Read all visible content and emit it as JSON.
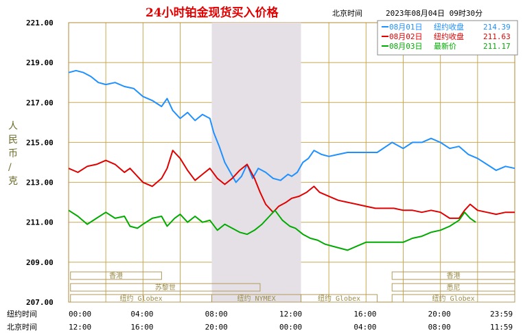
{
  "chart_data": {
    "type": "line",
    "title": "24小时铂金现货买入价格",
    "location": "北京时间",
    "datetime": "2023年08月04日 09时30分",
    "ylabel": "人民币/克",
    "ylim": [
      207,
      221
    ],
    "yticks": [
      "221.00",
      "219.00",
      "217.00",
      "215.00",
      "213.00",
      "211.00",
      "209.00",
      "207.00"
    ],
    "xlim": [
      0,
      24
    ],
    "x_row1_label": "纽约时间",
    "x_row1_ticks": [
      "00:00",
      "04:00",
      "08:00",
      "12:00",
      "16:00",
      "20:00",
      "23:59"
    ],
    "x_row2_label": "北京时间",
    "x_row2_ticks": [
      "12:00",
      "16:00",
      "20:00",
      "00:00",
      "04:00",
      "08:00",
      "11:59"
    ],
    "shaded_range": [
      7.7,
      12.5
    ],
    "markets": [
      {
        "name": "香港",
        "start": 0.1,
        "end": 5.0,
        "row": 0
      },
      {
        "name": "香港",
        "start": 17.4,
        "end": 24,
        "row": 0
      },
      {
        "name": "苏黎世",
        "start": 0.1,
        "end": 10.3,
        "row": 1
      },
      {
        "name": "悉尼",
        "start": 17.4,
        "end": 24,
        "row": 1
      },
      {
        "name": "纽约 Globex",
        "start": 0.1,
        "end": 7.7,
        "row": 2
      },
      {
        "name": "纽约 NYMEX",
        "start": 7.7,
        "end": 12.5,
        "row": 2
      },
      {
        "name": "纽约 Globex",
        "start": 12.5,
        "end": 16.6,
        "row": 2
      },
      {
        "name": "纽约 Globex",
        "start": 17.4,
        "end": 24,
        "row": 2
      }
    ],
    "series": [
      {
        "name": "08月01日",
        "legend_label": "纽约收盘",
        "legend_value": "214.39",
        "color": "#1e90ff",
        "points": [
          [
            0,
            218.5
          ],
          [
            0.4,
            218.6
          ],
          [
            0.8,
            218.5
          ],
          [
            1.2,
            218.3
          ],
          [
            1.6,
            218.0
          ],
          [
            2.0,
            217.9
          ],
          [
            2.5,
            218.0
          ],
          [
            3.0,
            217.8
          ],
          [
            3.5,
            217.7
          ],
          [
            4.0,
            217.3
          ],
          [
            4.5,
            217.1
          ],
          [
            5.0,
            216.8
          ],
          [
            5.3,
            217.2
          ],
          [
            5.6,
            216.6
          ],
          [
            6.0,
            216.2
          ],
          [
            6.4,
            216.5
          ],
          [
            6.8,
            216.1
          ],
          [
            7.2,
            216.4
          ],
          [
            7.6,
            216.2
          ],
          [
            7.8,
            215.5
          ],
          [
            8.1,
            214.8
          ],
          [
            8.4,
            214.0
          ],
          [
            8.7,
            213.5
          ],
          [
            9.0,
            213.0
          ],
          [
            9.3,
            213.3
          ],
          [
            9.6,
            213.9
          ],
          [
            9.9,
            213.2
          ],
          [
            10.2,
            213.7
          ],
          [
            10.6,
            213.5
          ],
          [
            11.0,
            213.2
          ],
          [
            11.4,
            213.1
          ],
          [
            11.8,
            213.4
          ],
          [
            12.0,
            213.3
          ],
          [
            12.3,
            213.5
          ],
          [
            12.6,
            214.0
          ],
          [
            12.9,
            214.2
          ],
          [
            13.2,
            214.6
          ],
          [
            13.6,
            214.4
          ],
          [
            14.0,
            214.3
          ],
          [
            14.5,
            214.4
          ],
          [
            15.0,
            214.5
          ],
          [
            15.5,
            214.5
          ],
          [
            16.0,
            214.5
          ],
          [
            16.6,
            214.5
          ],
          [
            17.4,
            215.0
          ],
          [
            18.0,
            214.7
          ],
          [
            18.5,
            215.0
          ],
          [
            19.0,
            215.0
          ],
          [
            19.5,
            215.2
          ],
          [
            20.0,
            215.0
          ],
          [
            20.5,
            214.7
          ],
          [
            21.0,
            214.8
          ],
          [
            21.5,
            214.4
          ],
          [
            22.0,
            214.2
          ],
          [
            22.5,
            213.9
          ],
          [
            23.0,
            213.6
          ],
          [
            23.5,
            213.8
          ],
          [
            24.0,
            213.7
          ]
        ]
      },
      {
        "name": "08月02日",
        "legend_label": "纽约收盘",
        "legend_value": "211.63",
        "color": "#e00000",
        "points": [
          [
            0,
            213.7
          ],
          [
            0.5,
            213.5
          ],
          [
            1.0,
            213.8
          ],
          [
            1.5,
            213.9
          ],
          [
            2.0,
            214.1
          ],
          [
            2.5,
            213.9
          ],
          [
            3.0,
            213.5
          ],
          [
            3.3,
            213.7
          ],
          [
            3.7,
            213.3
          ],
          [
            4.0,
            213.0
          ],
          [
            4.5,
            212.8
          ],
          [
            5.0,
            213.2
          ],
          [
            5.3,
            213.7
          ],
          [
            5.6,
            214.6
          ],
          [
            6.0,
            214.2
          ],
          [
            6.4,
            213.6
          ],
          [
            6.8,
            213.1
          ],
          [
            7.2,
            213.4
          ],
          [
            7.6,
            213.7
          ],
          [
            8.0,
            213.2
          ],
          [
            8.4,
            212.9
          ],
          [
            8.8,
            213.2
          ],
          [
            9.2,
            213.6
          ],
          [
            9.6,
            213.9
          ],
          [
            10.0,
            213.2
          ],
          [
            10.3,
            212.5
          ],
          [
            10.6,
            211.9
          ],
          [
            11.0,
            211.5
          ],
          [
            11.3,
            211.8
          ],
          [
            11.7,
            212.0
          ],
          [
            12.0,
            212.2
          ],
          [
            12.4,
            212.3
          ],
          [
            12.8,
            212.5
          ],
          [
            13.2,
            212.8
          ],
          [
            13.5,
            212.5
          ],
          [
            14.0,
            212.3
          ],
          [
            14.5,
            212.1
          ],
          [
            15.0,
            212.0
          ],
          [
            15.5,
            211.9
          ],
          [
            16.0,
            211.8
          ],
          [
            16.5,
            211.7
          ],
          [
            17.0,
            211.7
          ],
          [
            17.5,
            211.7
          ],
          [
            18.0,
            211.6
          ],
          [
            18.5,
            211.6
          ],
          [
            19.0,
            211.5
          ],
          [
            19.5,
            211.6
          ],
          [
            20.0,
            211.5
          ],
          [
            20.5,
            211.2
          ],
          [
            21.0,
            211.2
          ],
          [
            21.3,
            211.6
          ],
          [
            21.6,
            211.9
          ],
          [
            22.0,
            211.6
          ],
          [
            22.5,
            211.5
          ],
          [
            23.0,
            211.4
          ],
          [
            23.5,
            211.5
          ],
          [
            24.0,
            211.5
          ]
        ]
      },
      {
        "name": "08月03日",
        "legend_label": "最新价",
        "legend_value": "211.17",
        "color": "#00aa00",
        "points": [
          [
            0,
            211.6
          ],
          [
            0.5,
            211.3
          ],
          [
            1.0,
            210.9
          ],
          [
            1.5,
            211.2
          ],
          [
            2.0,
            211.5
          ],
          [
            2.5,
            211.2
          ],
          [
            3.0,
            211.3
          ],
          [
            3.3,
            210.8
          ],
          [
            3.7,
            210.7
          ],
          [
            4.0,
            210.9
          ],
          [
            4.5,
            211.2
          ],
          [
            5.0,
            211.3
          ],
          [
            5.3,
            210.8
          ],
          [
            5.7,
            211.2
          ],
          [
            6.0,
            211.4
          ],
          [
            6.4,
            211.0
          ],
          [
            6.8,
            211.3
          ],
          [
            7.2,
            211.0
          ],
          [
            7.6,
            211.1
          ],
          [
            8.0,
            210.6
          ],
          [
            8.4,
            210.9
          ],
          [
            8.8,
            210.7
          ],
          [
            9.2,
            210.5
          ],
          [
            9.6,
            210.4
          ],
          [
            10.0,
            210.6
          ],
          [
            10.4,
            210.9
          ],
          [
            10.8,
            211.3
          ],
          [
            11.1,
            211.6
          ],
          [
            11.5,
            211.1
          ],
          [
            11.9,
            210.8
          ],
          [
            12.2,
            210.7
          ],
          [
            12.6,
            210.4
          ],
          [
            13.0,
            210.2
          ],
          [
            13.4,
            210.1
          ],
          [
            13.8,
            209.9
          ],
          [
            14.2,
            209.8
          ],
          [
            14.6,
            209.7
          ],
          [
            15.0,
            209.6
          ],
          [
            15.5,
            209.8
          ],
          [
            16.0,
            210.0
          ],
          [
            16.5,
            210.0
          ],
          [
            17.0,
            210.0
          ],
          [
            17.5,
            210.0
          ],
          [
            18.0,
            210.0
          ],
          [
            18.5,
            210.2
          ],
          [
            19.0,
            210.3
          ],
          [
            19.5,
            210.5
          ],
          [
            20.0,
            210.6
          ],
          [
            20.5,
            210.8
          ],
          [
            21.0,
            211.1
          ],
          [
            21.3,
            211.5
          ],
          [
            21.6,
            211.2
          ],
          [
            21.9,
            211.0
          ]
        ]
      }
    ]
  }
}
